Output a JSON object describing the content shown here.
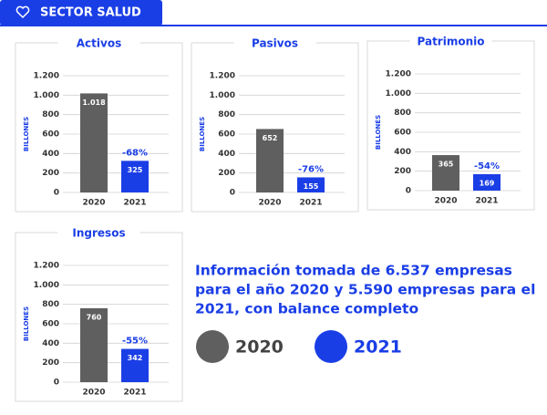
{
  "header": {
    "title": "SECTOR SALUD"
  },
  "chart_data": [
    {
      "type": "bar",
      "title": "Activos",
      "y_label": "BILLONES",
      "categories": [
        "2020",
        "2021"
      ],
      "values": [
        1018,
        325
      ],
      "value_labels": [
        "1.018",
        "325"
      ],
      "colors": [
        "#5f5f5f",
        "#1a3ee6"
      ],
      "annotation": "-68%",
      "ylim": [
        0,
        1200
      ],
      "yticks": [
        0,
        200,
        400,
        600,
        800,
        {
          "value": 1000,
          "label": "1.000"
        },
        {
          "value": 1200,
          "label": "1.200"
        }
      ],
      "grid": true
    },
    {
      "type": "bar",
      "title": "Pasivos",
      "y_label": "BILLONES",
      "categories": [
        "2020",
        "2021"
      ],
      "values": [
        652,
        155
      ],
      "colors": [
        "#5f5f5f",
        "#1a3ee6"
      ],
      "annotation": "-76%",
      "ylim": [
        0,
        1200
      ],
      "yticks": [
        0,
        200,
        400,
        600,
        800,
        {
          "value": 1000,
          "label": "1.000"
        },
        {
          "value": 1200,
          "label": "1.200"
        }
      ],
      "grid": true
    },
    {
      "type": "bar",
      "title": "Patrimonio",
      "y_label": "BILLONES",
      "categories": [
        "2020",
        "2021"
      ],
      "values": [
        365,
        169
      ],
      "colors": [
        "#5f5f5f",
        "#1a3ee6"
      ],
      "annotation": "-54%",
      "ylim": [
        0,
        1200
      ],
      "yticks": [
        0,
        200,
        400,
        600,
        800,
        {
          "value": 1000,
          "label": "1.000"
        },
        {
          "value": 1200,
          "label": "1.200"
        }
      ],
      "grid": true
    },
    {
      "type": "bar",
      "title": "Ingresos",
      "y_label": "BILLONES",
      "categories": [
        "2020",
        "2021"
      ],
      "values": [
        760,
        342
      ],
      "colors": [
        "#5f5f5f",
        "#1a3ee6"
      ],
      "annotation": "-55%",
      "ylim": [
        0,
        1200
      ],
      "yticks": [
        0,
        200,
        400,
        600,
        800,
        {
          "value": 1000,
          "label": "1.000"
        },
        {
          "value": 1200,
          "label": "1.200"
        }
      ],
      "grid": true
    }
  ],
  "info": [
    "Información tomada de 6.537 empresas",
    "para el año 2020 y 5.590 empresas para el",
    "2021, con balance completo"
  ],
  "legend": [
    {
      "name": "2020",
      "color": "#5f5f5f"
    },
    {
      "name": "2021",
      "color": "#1a3ee6"
    }
  ]
}
